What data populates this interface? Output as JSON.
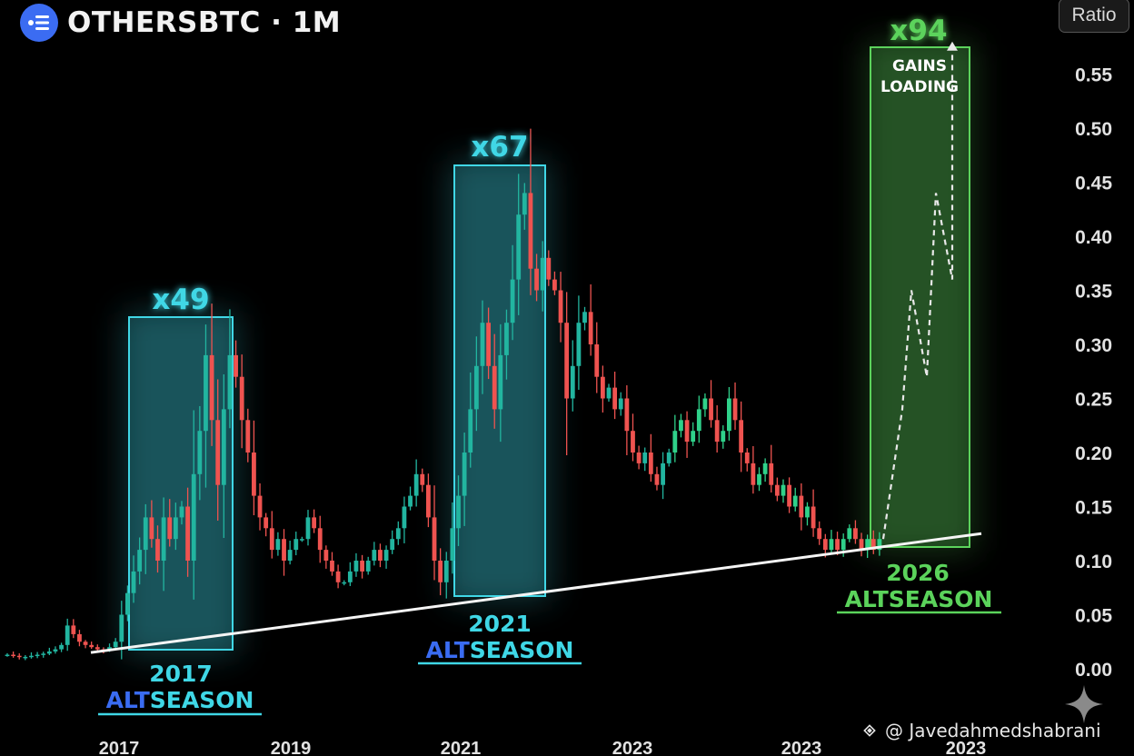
{
  "header": {
    "title": "OTHERSBTC · 1M",
    "logo_icon": "flow-lines-icon",
    "ratio_button": "Ratio"
  },
  "watermark": {
    "icon": "binance-diamond-icon",
    "text": "@ Javedahmedshabrani"
  },
  "colors": {
    "bull": "#26a69a",
    "bull_bright": "#2fd18a",
    "bear": "#ef5350",
    "cyan": "#3fd7e6",
    "green": "#5bd35b",
    "blue": "#3a6cf2"
  },
  "chart_data": {
    "type": "candlestick",
    "ylim": [
      0.0,
      0.6
    ],
    "yticks": [
      "0.00",
      "0.05",
      "0.10",
      "0.15",
      "0.20",
      "0.25",
      "0.30",
      "0.35",
      "0.40",
      "0.45",
      "0.50",
      "0.55"
    ],
    "xticks": [
      "2017",
      "2019",
      "2021",
      "2023",
      "2023",
      "2023"
    ],
    "closes": [
      0.013,
      0.012,
      0.011,
      0.011,
      0.012,
      0.013,
      0.014,
      0.016,
      0.018,
      0.022,
      0.04,
      0.032,
      0.025,
      0.022,
      0.02,
      0.018,
      0.017,
      0.02,
      0.025,
      0.05,
      0.07,
      0.09,
      0.11,
      0.14,
      0.12,
      0.1,
      0.14,
      0.12,
      0.14,
      0.15,
      0.1,
      0.18,
      0.22,
      0.29,
      0.23,
      0.17,
      0.24,
      0.29,
      0.27,
      0.23,
      0.2,
      0.16,
      0.14,
      0.13,
      0.11,
      0.12,
      0.1,
      0.11,
      0.12,
      0.12,
      0.14,
      0.13,
      0.11,
      0.1,
      0.09,
      0.08,
      0.08,
      0.09,
      0.1,
      0.09,
      0.1,
      0.11,
      0.1,
      0.11,
      0.12,
      0.13,
      0.15,
      0.16,
      0.18,
      0.17,
      0.14,
      0.1,
      0.08,
      0.1,
      0.13,
      0.16,
      0.2,
      0.24,
      0.28,
      0.32,
      0.28,
      0.24,
      0.29,
      0.32,
      0.36,
      0.42,
      0.44,
      0.37,
      0.35,
      0.38,
      0.36,
      0.35,
      0.32,
      0.25,
      0.28,
      0.32,
      0.33,
      0.3,
      0.27,
      0.25,
      0.26,
      0.24,
      0.25,
      0.22,
      0.2,
      0.19,
      0.2,
      0.18,
      0.17,
      0.19,
      0.2,
      0.22,
      0.23,
      0.21,
      0.22,
      0.24,
      0.25,
      0.23,
      0.21,
      0.22,
      0.25,
      0.23,
      0.2,
      0.19,
      0.17,
      0.18,
      0.19,
      0.17,
      0.16,
      0.17,
      0.15,
      0.16,
      0.14,
      0.15,
      0.13,
      0.12,
      0.11,
      0.12,
      0.11,
      0.12,
      0.13,
      0.12,
      0.11,
      0.12,
      0.11,
      0.12
    ],
    "trendline": [
      0.015,
      0.125
    ],
    "annotations": {
      "s2017": {
        "multiplier": "x49",
        "year": "2017",
        "alt": "ALT",
        "season": "SEASON"
      },
      "s2021": {
        "multiplier": "x67",
        "year": "2021",
        "alt": "ALT",
        "season": "SEASON"
      },
      "s2026": {
        "multiplier": "x94",
        "year": "2026",
        "alt": "ALT",
        "season": "SEASON",
        "note_line1": "GAINS",
        "note_line2": "LOADING"
      }
    },
    "projection": [
      0.12,
      0.24,
      0.35,
      0.27,
      0.44,
      0.36,
      0.58
    ]
  }
}
